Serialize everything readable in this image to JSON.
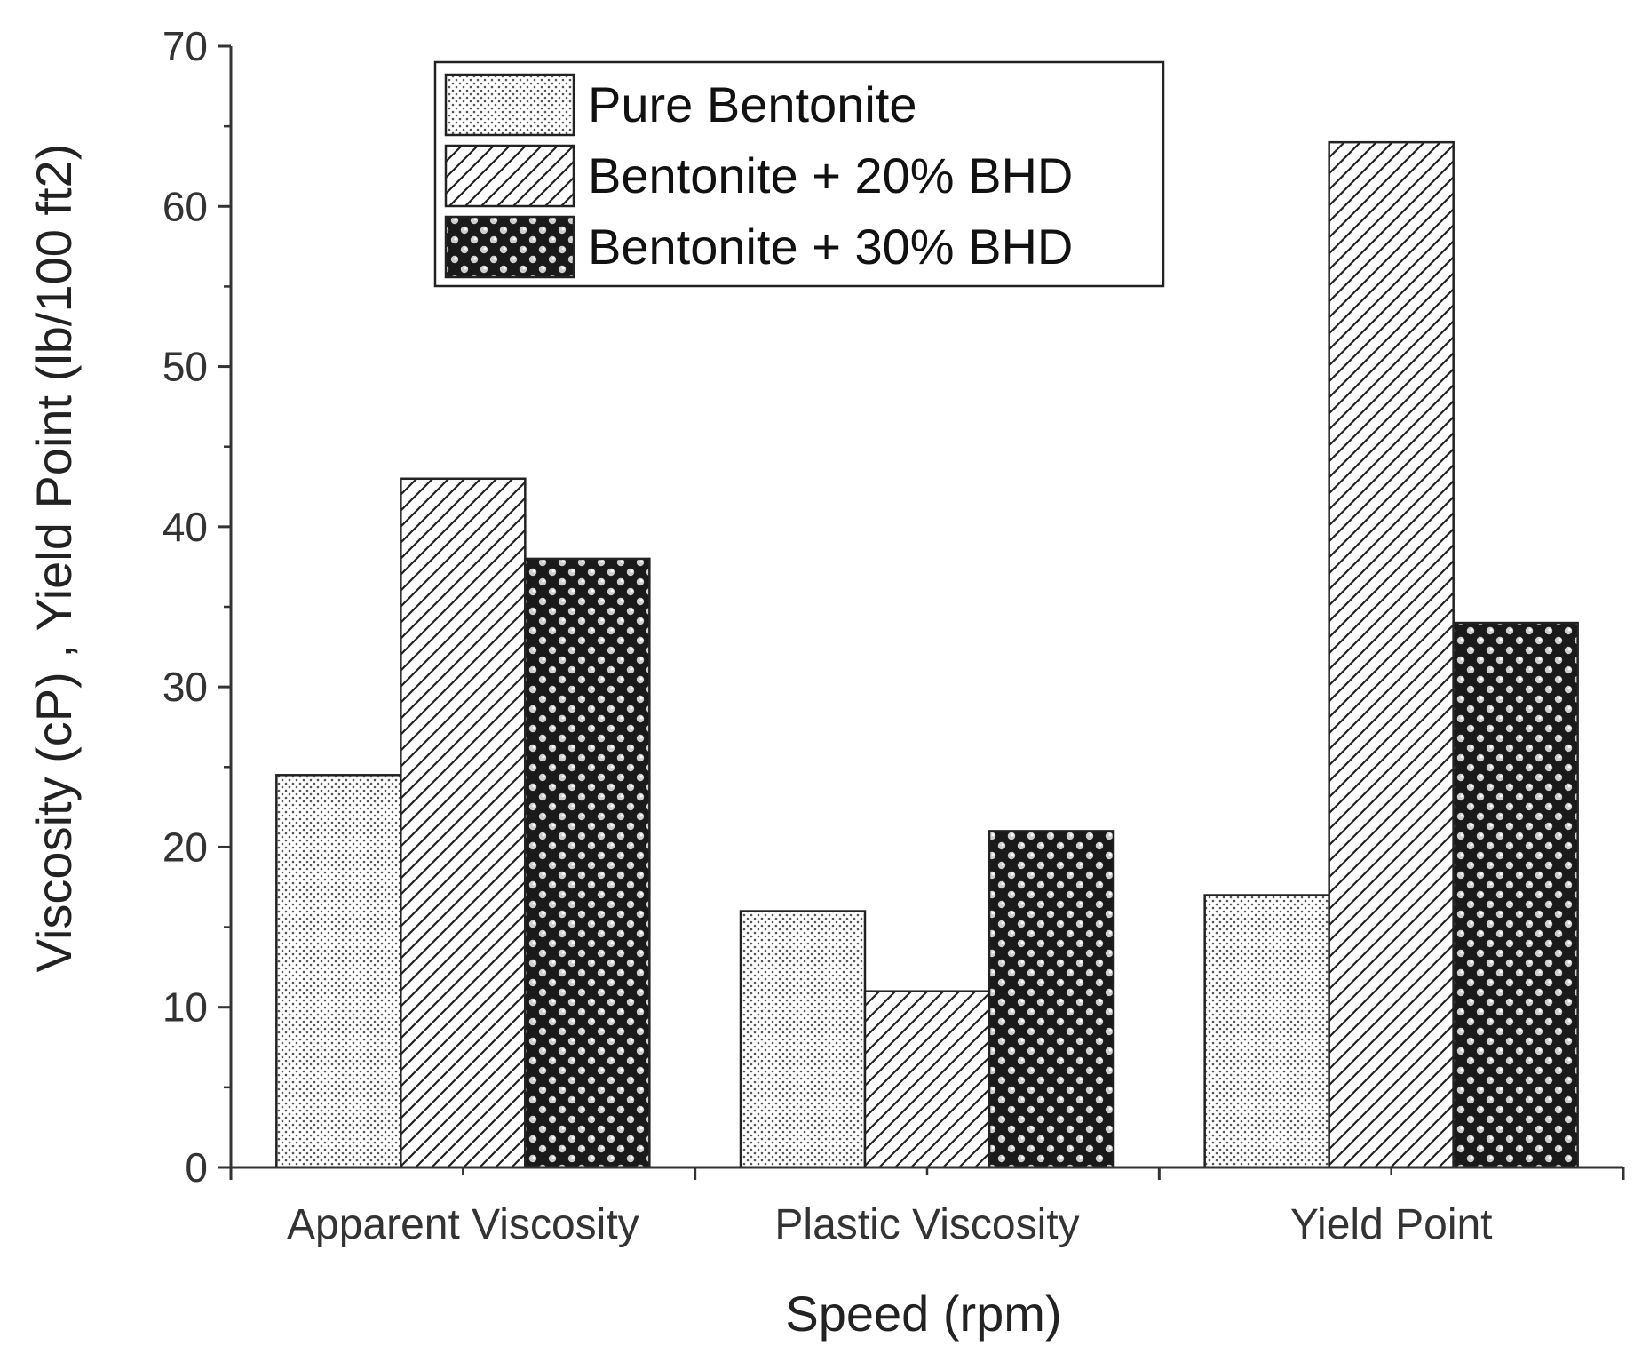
{
  "chart_data": {
    "type": "bar",
    "title": "",
    "xlabel": "Speed (rpm)",
    "ylabel": "Viscosity (cP) , Yield Point  (lb/100 ft2)",
    "ylim": [
      0,
      70
    ],
    "yticks": [
      0,
      10,
      20,
      30,
      40,
      50,
      60,
      70
    ],
    "yticks_text": [
      "0",
      "10",
      "20",
      "30",
      "40",
      "50",
      "60",
      "70"
    ],
    "categories": [
      "Apparent Viscosity",
      "Plastic Viscosity",
      "Yield Point"
    ],
    "series": [
      {
        "name": "Pure Bentonite",
        "pattern": "dots",
        "values": [
          24.5,
          16,
          17
        ]
      },
      {
        "name": "Bentonite + 20% BHD",
        "pattern": "hatch",
        "values": [
          43,
          11,
          64
        ]
      },
      {
        "name": "Bentonite + 30% BHD",
        "pattern": "balls",
        "values": [
          38,
          21,
          34
        ]
      }
    ],
    "legend_position": "top-center",
    "grid": false,
    "colors": {
      "axis": "#333333",
      "bar_edge": "#222222",
      "background": "#ffffff"
    }
  }
}
